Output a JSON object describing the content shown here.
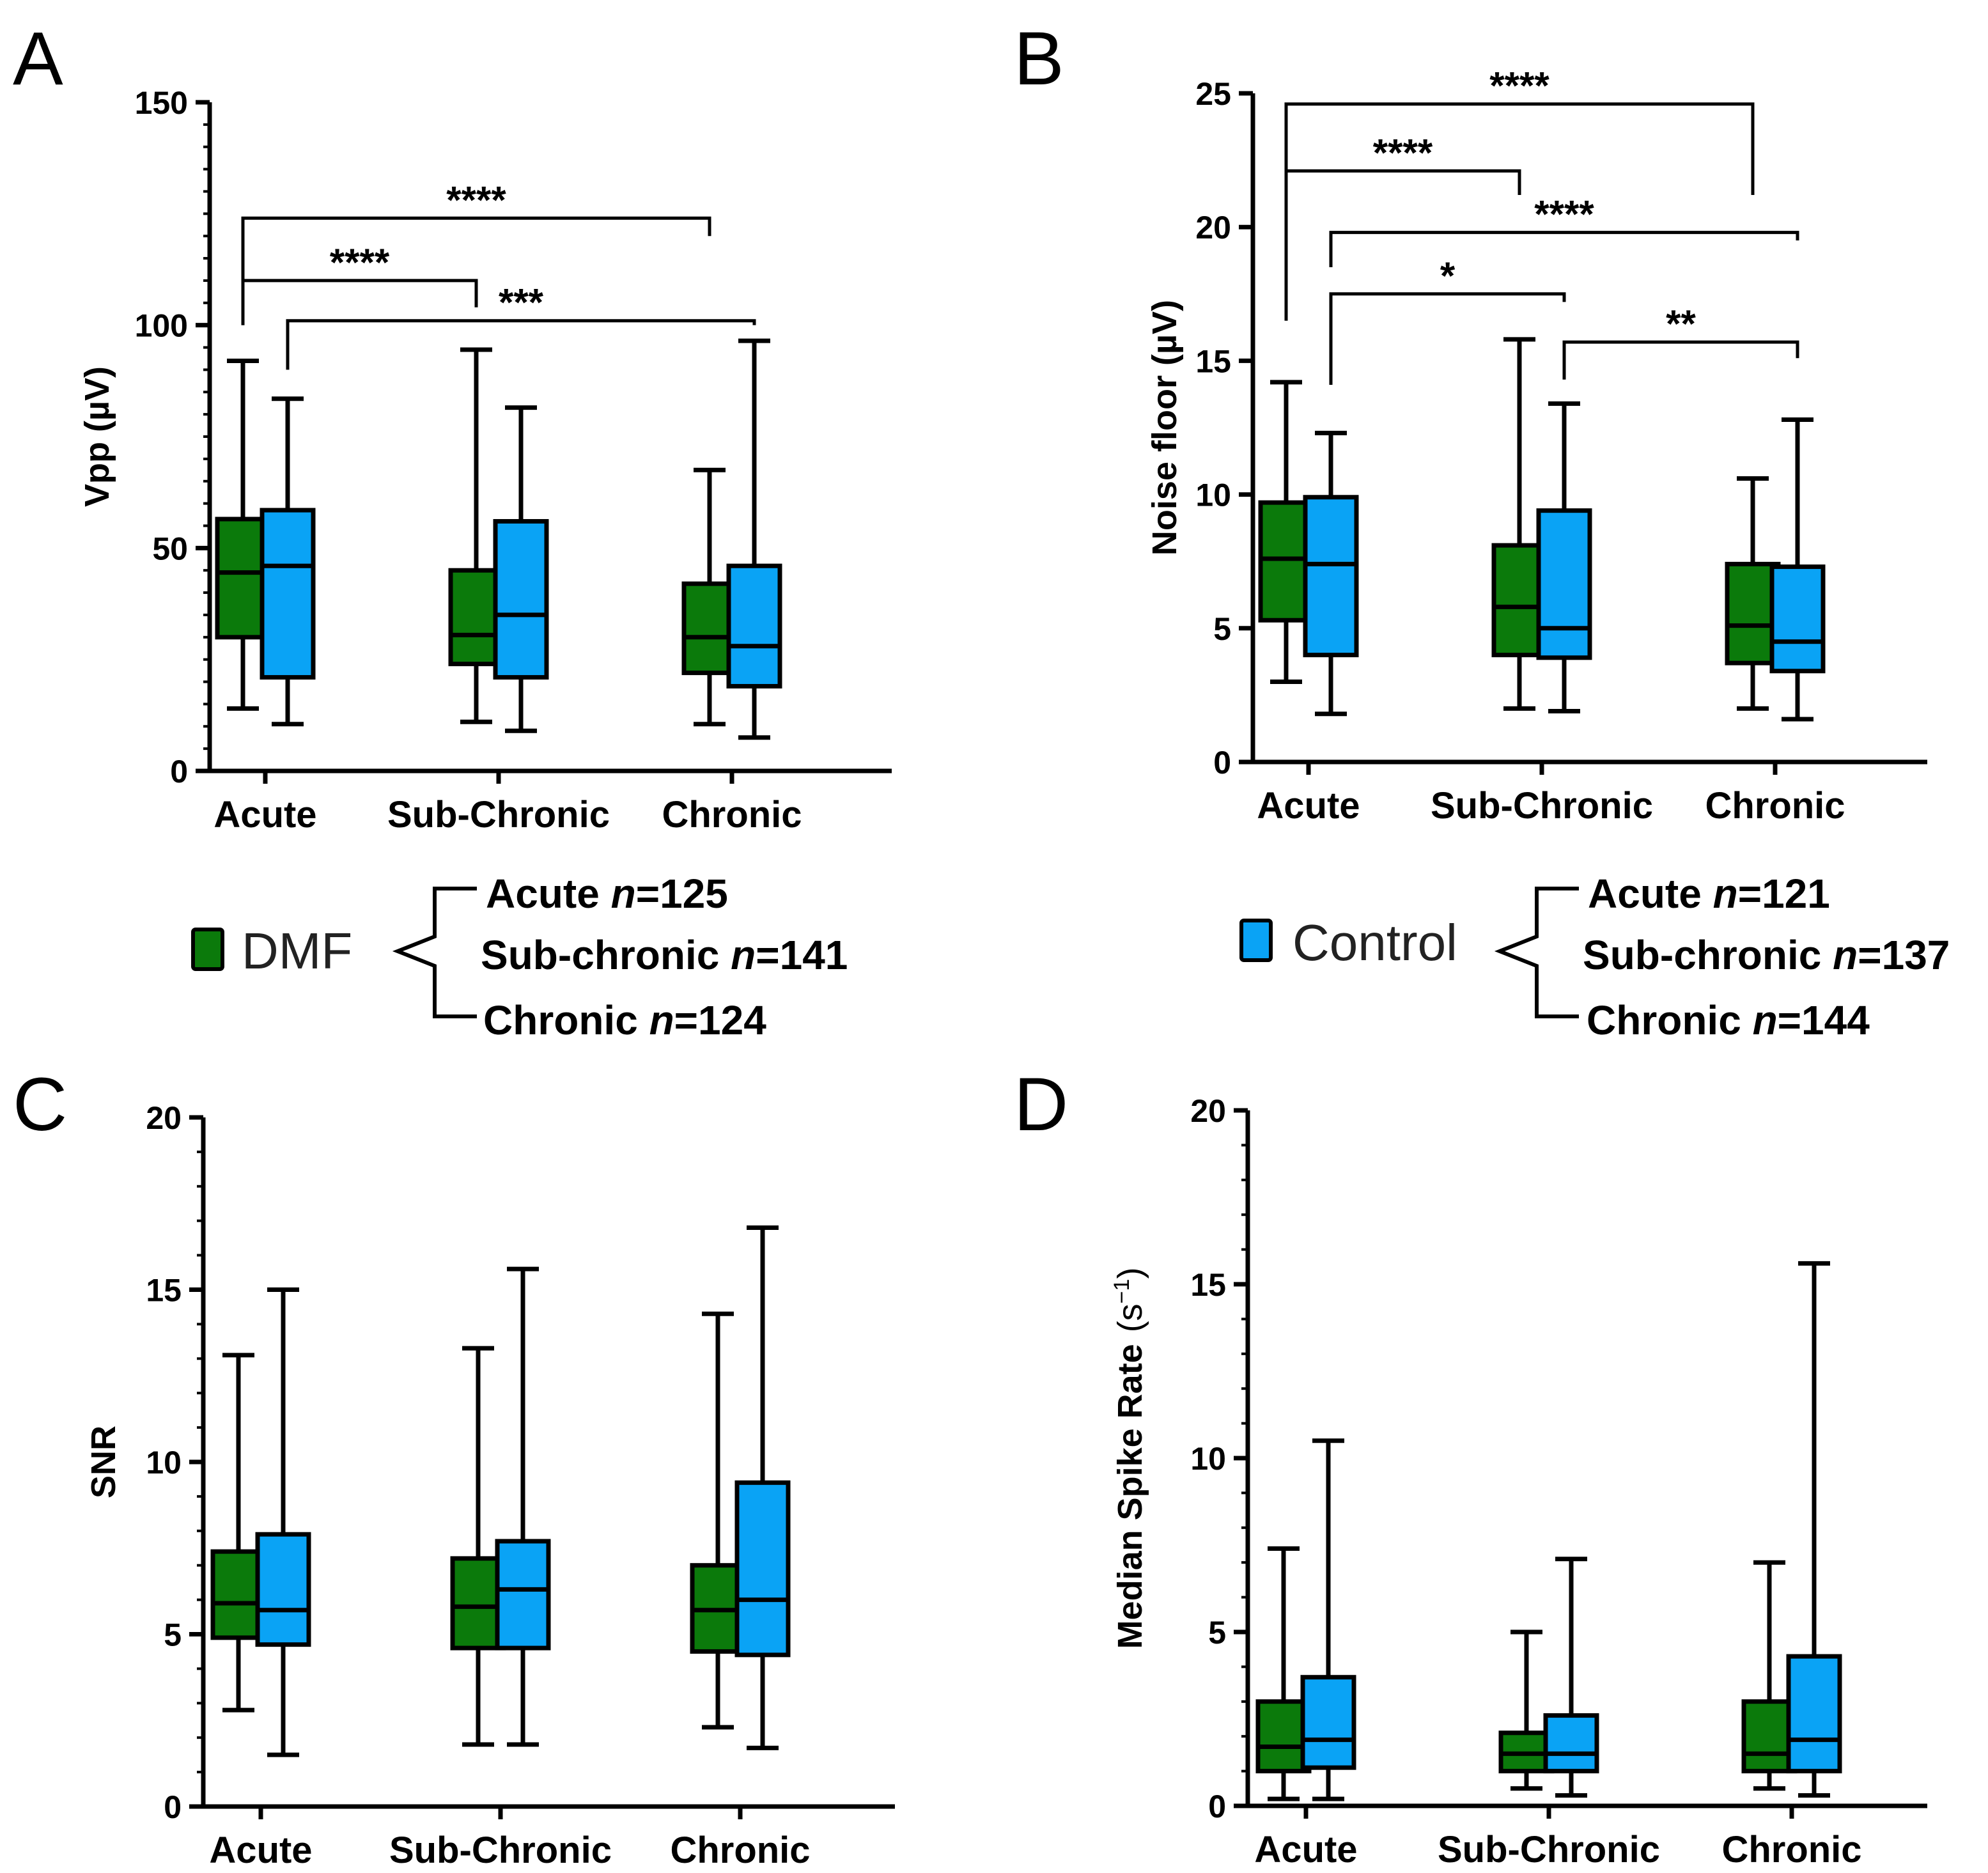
{
  "colors": {
    "DMF": "#0b7a0b",
    "Control": "#0aa3f5",
    "stroke": "#000000"
  },
  "legend": {
    "groups": [
      {
        "swatch_color": "#0b7a0b",
        "name": "DMF",
        "entries": [
          {
            "label": "Acute",
            "n_sym": "n",
            "n_val": "=125"
          },
          {
            "label": "Sub-chronic",
            "n_sym": "n",
            "n_val": "=141"
          },
          {
            "label": "Chronic",
            "n_sym": "n",
            "n_val": "=124"
          }
        ]
      },
      {
        "swatch_color": "#0aa3f5",
        "name": "Control",
        "entries": [
          {
            "label": "Acute",
            "n_sym": "n",
            "n_val": "=121"
          },
          {
            "label": "Sub-chronic",
            "n_sym": "n",
            "n_val": "=137"
          },
          {
            "label": "Chronic",
            "n_sym": "n",
            "n_val": "=144"
          }
        ]
      }
    ]
  },
  "chart_data": [
    {
      "type": "box",
      "panel": "A",
      "ylabel": "Vpp  (µV)",
      "ylim": [
        0,
        150
      ],
      "yticks": [
        0,
        50,
        100,
        150
      ],
      "minor_ticks": 10,
      "categories": [
        "Acute",
        "Sub-Chronic",
        "Chronic"
      ],
      "series": [
        {
          "name": "DMF",
          "boxes": [
            {
              "min": 14,
              "q1": 30,
              "median": 44.5,
              "q3": 56.5,
              "max": 92
            },
            {
              "min": 11,
              "q1": 24,
              "median": 30.5,
              "q3": 45,
              "max": 94.5
            },
            {
              "min": 10.5,
              "q1": 22,
              "median": 30,
              "q3": 42,
              "max": 67.5
            }
          ]
        },
        {
          "name": "Control",
          "boxes": [
            {
              "min": 10.5,
              "q1": 21,
              "median": 46,
              "q3": 58.5,
              "max": 83.5
            },
            {
              "min": 9,
              "q1": 21,
              "median": 35,
              "q3": 56,
              "max": 81.5
            },
            {
              "min": 7.5,
              "q1": 19,
              "median": 28,
              "q3": 46,
              "max": 96.5
            }
          ]
        }
      ],
      "significance": [
        {
          "label": "****",
          "from": [
            0,
            0
          ],
          "to": [
            2,
            0
          ],
          "y": 124,
          "y_from": 100,
          "y_to": 120
        },
        {
          "label": "****",
          "from": [
            0,
            0
          ],
          "to": [
            1,
            0
          ],
          "y": 110,
          "y_from": 100,
          "y_to": 104
        },
        {
          "label": "***",
          "from": [
            0,
            1
          ],
          "to": [
            2,
            1
          ],
          "y": 101,
          "y_from": 90,
          "y_to": 100
        }
      ]
    },
    {
      "type": "box",
      "panel": "B",
      "ylabel": "Noise floor (µV)",
      "ylim": [
        0,
        25
      ],
      "yticks": [
        0,
        5,
        10,
        15,
        20,
        25
      ],
      "minor_ticks": 0,
      "categories": [
        "Acute",
        "Sub-Chronic",
        "Chronic"
      ],
      "series": [
        {
          "name": "DMF",
          "boxes": [
            {
              "min": 3,
              "q1": 5.3,
              "median": 7.6,
              "q3": 9.7,
              "max": 14.2
            },
            {
              "min": 2,
              "q1": 4,
              "median": 5.8,
              "q3": 8.1,
              "max": 15.8
            },
            {
              "min": 2,
              "q1": 3.7,
              "median": 5.1,
              "q3": 7.4,
              "max": 10.6
            }
          ]
        },
        {
          "name": "Control",
          "boxes": [
            {
              "min": 1.8,
              "q1": 4,
              "median": 7.4,
              "q3": 9.9,
              "max": 12.3
            },
            {
              "min": 1.9,
              "q1": 3.9,
              "median": 5,
              "q3": 9.4,
              "max": 13.4
            },
            {
              "min": 1.6,
              "q1": 3.4,
              "median": 4.5,
              "q3": 7.3,
              "max": 12.8
            }
          ]
        }
      ],
      "significance": [
        {
          "label": "****",
          "from": [
            0,
            0
          ],
          "to": [
            2,
            0
          ],
          "y": 24.6,
          "y_from": 16.5,
          "y_to": 21.2
        },
        {
          "label": "****",
          "from": [
            0,
            0
          ],
          "to": [
            1,
            0
          ],
          "y": 22.1,
          "y_from": 16.5,
          "y_to": 21.2
        },
        {
          "label": "****",
          "from": [
            0,
            1
          ],
          "to": [
            2,
            1
          ],
          "y": 19.8,
          "y_from": 18.5,
          "y_to": 19.5
        },
        {
          "label": "*",
          "from": [
            0,
            1
          ],
          "to": [
            1,
            1
          ],
          "y": 17.5,
          "y_from": 14.1,
          "y_to": 17.2
        },
        {
          "label": "**",
          "from": [
            1,
            1
          ],
          "to": [
            2,
            1
          ],
          "y": 15.7,
          "y_from": 14.3,
          "y_to": 15.1
        }
      ]
    },
    {
      "type": "box",
      "panel": "C",
      "ylabel": "SNR",
      "ylim": [
        0,
        20
      ],
      "yticks": [
        0,
        5,
        10,
        15,
        20
      ],
      "minor_ticks": 5,
      "categories": [
        "Acute",
        "Sub-Chronic",
        "Chronic"
      ],
      "series": [
        {
          "name": "DMF",
          "boxes": [
            {
              "min": 2.8,
              "q1": 4.9,
              "median": 5.9,
              "q3": 7.4,
              "max": 13.1
            },
            {
              "min": 1.8,
              "q1": 4.6,
              "median": 5.8,
              "q3": 7.2,
              "max": 13.3
            },
            {
              "min": 2.3,
              "q1": 4.5,
              "median": 5.7,
              "q3": 7,
              "max": 14.3
            }
          ]
        },
        {
          "name": "Control",
          "boxes": [
            {
              "min": 1.5,
              "q1": 4.7,
              "median": 5.7,
              "q3": 7.9,
              "max": 15
            },
            {
              "min": 1.8,
              "q1": 4.6,
              "median": 6.3,
              "q3": 7.7,
              "max": 15.6
            },
            {
              "min": 1.7,
              "q1": 4.4,
              "median": 6,
              "q3": 9.4,
              "max": 16.8
            }
          ]
        }
      ],
      "significance": []
    },
    {
      "type": "box",
      "panel": "D",
      "ylabel": "Median Spike Rate",
      "ylabel_unit": "(s",
      "ylabel_sup": "−1",
      "ylabel_close": ")",
      "ylim": [
        0,
        20
      ],
      "yticks": [
        0,
        5,
        10,
        15,
        20
      ],
      "minor_ticks": 5,
      "categories": [
        "Acute",
        "Sub-Chronic",
        "Chronic"
      ],
      "series": [
        {
          "name": "DMF",
          "boxes": [
            {
              "min": 0.2,
              "q1": 1,
              "median": 1.7,
              "q3": 3,
              "max": 7.4
            },
            {
              "min": 0.5,
              "q1": 1,
              "median": 1.5,
              "q3": 2.1,
              "max": 5
            },
            {
              "min": 0.5,
              "q1": 1,
              "median": 1.5,
              "q3": 3,
              "max": 7
            }
          ]
        },
        {
          "name": "Control",
          "boxes": [
            {
              "min": 0.2,
              "q1": 1.1,
              "median": 1.9,
              "q3": 3.7,
              "max": 10.5
            },
            {
              "min": 0.3,
              "q1": 1,
              "median": 1.5,
              "q3": 2.6,
              "max": 7.1
            },
            {
              "min": 0.3,
              "q1": 1,
              "median": 1.9,
              "q3": 4.3,
              "max": 15.6
            }
          ]
        }
      ],
      "significance": []
    }
  ]
}
